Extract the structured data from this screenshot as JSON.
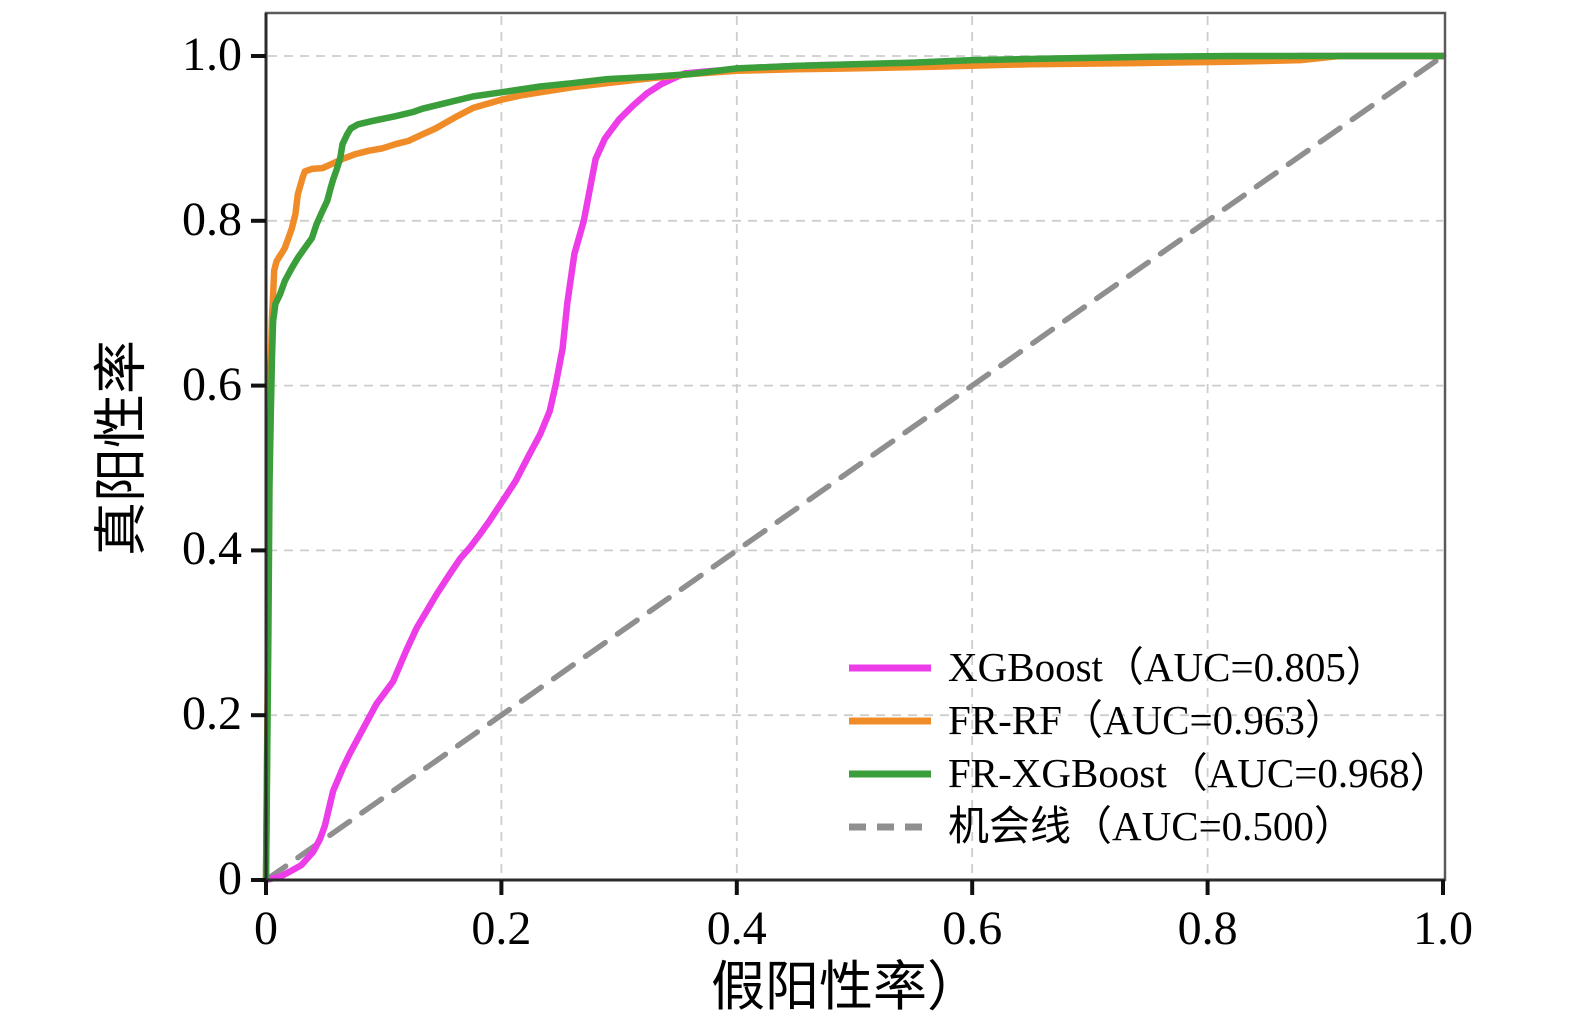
{
  "chart_data": {
    "type": "line",
    "title": "",
    "xlabel": "假阳性率）",
    "ylabel": "真阳性率",
    "xlim": [
      0,
      1.0
    ],
    "ylim": [
      0,
      1.05
    ],
    "grid": true,
    "grid_style": "dashed",
    "legend_position": "lower right",
    "x_ticks": {
      "values": [
        0,
        0.2,
        0.4,
        0.6,
        0.8,
        1.0
      ],
      "labels": [
        "0",
        "0.2",
        "0.4",
        "0.6",
        "0.8",
        "1.0"
      ]
    },
    "y_ticks": {
      "values": [
        0,
        0.2,
        0.4,
        0.6,
        0.8,
        1.0
      ],
      "labels": [
        "0",
        "0.2",
        "0.4",
        "0.6",
        "0.8",
        "1.0"
      ]
    },
    "series": [
      {
        "id": "xgboost",
        "name": "XGBoost（AUC=0.805）",
        "auc": 0.805,
        "color": "#ED3DE8",
        "line_style": "solid",
        "points": [
          [
            0,
            0
          ],
          [
            0.012,
            0.004
          ],
          [
            0.02,
            0.01
          ],
          [
            0.03,
            0.018
          ],
          [
            0.04,
            0.034
          ],
          [
            0.046,
            0.05
          ],
          [
            0.05,
            0.066
          ],
          [
            0.054,
            0.09
          ],
          [
            0.057,
            0.108
          ],
          [
            0.065,
            0.135
          ],
          [
            0.071,
            0.153
          ],
          [
            0.08,
            0.177
          ],
          [
            0.094,
            0.214
          ],
          [
            0.108,
            0.241
          ],
          [
            0.119,
            0.278
          ],
          [
            0.128,
            0.306
          ],
          [
            0.138,
            0.33
          ],
          [
            0.145,
            0.347
          ],
          [
            0.156,
            0.371
          ],
          [
            0.165,
            0.39
          ],
          [
            0.173,
            0.403
          ],
          [
            0.182,
            0.42
          ],
          [
            0.19,
            0.436
          ],
          [
            0.201,
            0.46
          ],
          [
            0.212,
            0.484
          ],
          [
            0.224,
            0.517
          ],
          [
            0.233,
            0.541
          ],
          [
            0.241,
            0.569
          ],
          [
            0.246,
            0.6
          ],
          [
            0.252,
            0.645
          ],
          [
            0.256,
            0.7
          ],
          [
            0.262,
            0.76
          ],
          [
            0.27,
            0.8
          ],
          [
            0.276,
            0.845
          ],
          [
            0.28,
            0.875
          ],
          [
            0.288,
            0.9
          ],
          [
            0.3,
            0.923
          ],
          [
            0.312,
            0.94
          ],
          [
            0.324,
            0.955
          ],
          [
            0.336,
            0.966
          ],
          [
            0.345,
            0.972
          ],
          [
            0.356,
            0.979
          ],
          [
            0.38,
            0.982
          ],
          [
            0.42,
            0.986
          ],
          [
            0.47,
            0.989
          ],
          [
            0.55,
            0.991
          ],
          [
            0.64,
            0.993
          ],
          [
            0.72,
            0.995
          ],
          [
            0.8,
            0.997
          ],
          [
            0.88,
            1.0
          ],
          [
            1,
            1
          ]
        ]
      },
      {
        "id": "fr-rf",
        "name": "FR-RF（AUC=0.963）",
        "auc": 0.963,
        "color": "#F08C28",
        "line_style": "solid",
        "points": [
          [
            0,
            0
          ],
          [
            0.002,
            0.35
          ],
          [
            0.003,
            0.55
          ],
          [
            0.004,
            0.62
          ],
          [
            0.005,
            0.68
          ],
          [
            0.006,
            0.71
          ],
          [
            0.007,
            0.74
          ],
          [
            0.009,
            0.751
          ],
          [
            0.013,
            0.76
          ],
          [
            0.016,
            0.767
          ],
          [
            0.019,
            0.779
          ],
          [
            0.022,
            0.791
          ],
          [
            0.025,
            0.808
          ],
          [
            0.027,
            0.832
          ],
          [
            0.031,
            0.852
          ],
          [
            0.033,
            0.86
          ],
          [
            0.039,
            0.863
          ],
          [
            0.048,
            0.864
          ],
          [
            0.056,
            0.869
          ],
          [
            0.065,
            0.875
          ],
          [
            0.076,
            0.881
          ],
          [
            0.087,
            0.885
          ],
          [
            0.099,
            0.888
          ],
          [
            0.11,
            0.893
          ],
          [
            0.121,
            0.897
          ],
          [
            0.133,
            0.905
          ],
          [
            0.144,
            0.912
          ],
          [
            0.16,
            0.925
          ],
          [
            0.176,
            0.937
          ],
          [
            0.2,
            0.947
          ],
          [
            0.216,
            0.952
          ],
          [
            0.233,
            0.956
          ],
          [
            0.26,
            0.962
          ],
          [
            0.29,
            0.967
          ],
          [
            0.32,
            0.972
          ],
          [
            0.36,
            0.978
          ],
          [
            0.4,
            0.982
          ],
          [
            0.45,
            0.984
          ],
          [
            0.5,
            0.985
          ],
          [
            0.567,
            0.987
          ],
          [
            0.65,
            0.99
          ],
          [
            0.72,
            0.991
          ],
          [
            0.765,
            0.992
          ],
          [
            0.82,
            0.993
          ],
          [
            0.879,
            0.995
          ],
          [
            0.912,
            1.0
          ],
          [
            1,
            1
          ]
        ]
      },
      {
        "id": "fr-xgboost",
        "name": "FR-XGBoost（AUC=0.968）",
        "auc": 0.968,
        "color": "#3A9E3A",
        "line_style": "solid",
        "points": [
          [
            0,
            0
          ],
          [
            0.002,
            0.3
          ],
          [
            0.003,
            0.48
          ],
          [
            0.004,
            0.56
          ],
          [
            0.005,
            0.63
          ],
          [
            0.006,
            0.678
          ],
          [
            0.008,
            0.699
          ],
          [
            0.012,
            0.711
          ],
          [
            0.016,
            0.727
          ],
          [
            0.022,
            0.743
          ],
          [
            0.027,
            0.755
          ],
          [
            0.033,
            0.767
          ],
          [
            0.039,
            0.779
          ],
          [
            0.043,
            0.796
          ],
          [
            0.048,
            0.812
          ],
          [
            0.052,
            0.824
          ],
          [
            0.055,
            0.84
          ],
          [
            0.057,
            0.85
          ],
          [
            0.06,
            0.862
          ],
          [
            0.063,
            0.876
          ],
          [
            0.065,
            0.893
          ],
          [
            0.069,
            0.905
          ],
          [
            0.072,
            0.912
          ],
          [
            0.078,
            0.917
          ],
          [
            0.09,
            0.921
          ],
          [
            0.11,
            0.927
          ],
          [
            0.125,
            0.932
          ],
          [
            0.133,
            0.936
          ],
          [
            0.15,
            0.942
          ],
          [
            0.176,
            0.951
          ],
          [
            0.2,
            0.956
          ],
          [
            0.233,
            0.963
          ],
          [
            0.26,
            0.967
          ],
          [
            0.29,
            0.972
          ],
          [
            0.33,
            0.975
          ],
          [
            0.36,
            0.978
          ],
          [
            0.4,
            0.985
          ],
          [
            0.45,
            0.988
          ],
          [
            0.5,
            0.99
          ],
          [
            0.55,
            0.992
          ],
          [
            0.6,
            0.995
          ],
          [
            0.67,
            0.997
          ],
          [
            0.75,
            0.999
          ],
          [
            0.82,
            1.0
          ],
          [
            1,
            1
          ]
        ]
      },
      {
        "id": "chance-line",
        "name": "机会线（AUC=0.500）",
        "auc": 0.5,
        "color": "#8F8F8F",
        "line_style": "dashed",
        "points": [
          [
            0,
            0
          ],
          [
            1,
            1
          ]
        ]
      }
    ]
  },
  "colors": {
    "background": "#FFFFFF",
    "grid": "#CDCDCD",
    "spine": "#2B2B2B",
    "tick": "#111111",
    "text": "#000000"
  }
}
